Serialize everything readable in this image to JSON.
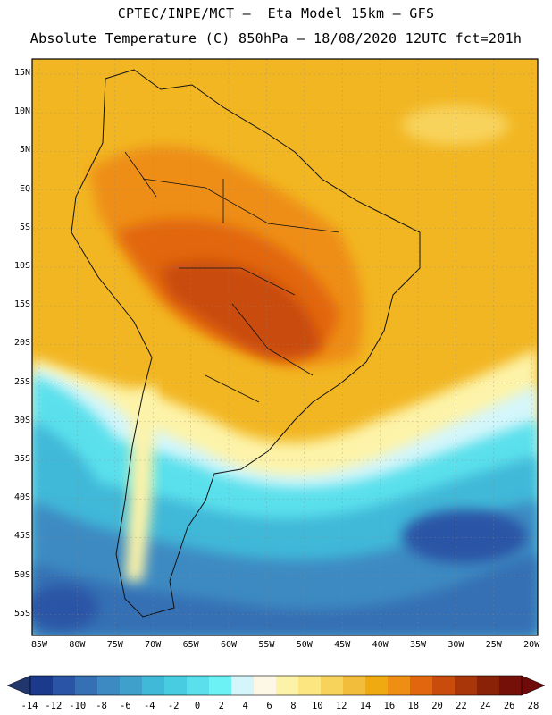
{
  "header": {
    "title_line1": "CPTEC/INPE/MCT –  Eta Model 15km – GFS",
    "title_line2": "Absolute Temperature (C) 850hPa – 18/08/2020 12UTC fct=201h"
  },
  "map": {
    "variable": "Absolute Temperature",
    "units": "C",
    "level": "850hPa",
    "lat_labels": [
      "15N",
      "10N",
      "5N",
      "EQ",
      "5S",
      "10S",
      "15S",
      "20S",
      "25S",
      "30S",
      "35S",
      "40S",
      "45S",
      "50S",
      "55S"
    ],
    "lon_labels": [
      "85W",
      "80W",
      "75W",
      "70W",
      "65W",
      "60W",
      "55W",
      "50W",
      "45W",
      "40W",
      "35W",
      "30W",
      "25W",
      "20W"
    ]
  },
  "colorbar": {
    "labels": [
      "-14",
      "-12",
      "-10",
      "-8",
      "-6",
      "-4",
      "-2",
      "0",
      "2",
      "4",
      "6",
      "8",
      "10",
      "12",
      "14",
      "16",
      "18",
      "20",
      "22",
      "24",
      "26",
      "28"
    ],
    "colors": [
      "#1b3a8c",
      "#2a55a6",
      "#3570b4",
      "#3d8ac2",
      "#3fa0cc",
      "#40b8d8",
      "#48cce2",
      "#5ae0ec",
      "#6cf2f4",
      "#d4f6fb",
      "#fdf8e6",
      "#fdf3a8",
      "#fbe680",
      "#f8d35c",
      "#f2bd3a",
      "#eeaa10",
      "#ee8e12",
      "#e2660e",
      "#c94c0c",
      "#a83608",
      "#8a2208",
      "#741008"
    ],
    "under_color": "#22366e",
    "over_color": "#6e0a0a"
  }
}
